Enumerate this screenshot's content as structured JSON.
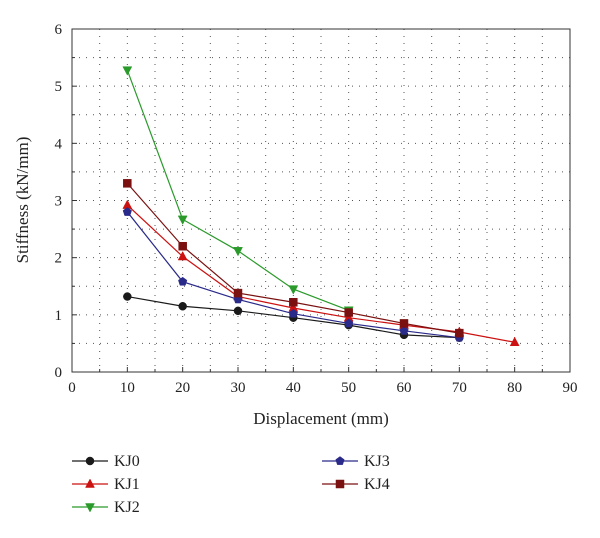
{
  "chart_data": {
    "type": "line",
    "title": "",
    "xlabel": "Displacement (mm)",
    "ylabel": "Stiffness (kN/mm)",
    "xlim": [
      0,
      90
    ],
    "ylim": [
      0,
      6
    ],
    "xticks": [
      0,
      10,
      20,
      30,
      40,
      50,
      60,
      70,
      80,
      90
    ],
    "yticks": [
      0,
      1,
      2,
      3,
      4,
      5,
      6
    ],
    "grid": true,
    "legend_position": "bottom",
    "series": [
      {
        "name": "KJ0",
        "color": "#1a1a1a",
        "marker": "circle",
        "x": [
          10,
          20,
          30,
          40,
          50,
          60,
          70
        ],
        "y": [
          1.32,
          1.15,
          1.07,
          0.95,
          0.82,
          0.65,
          0.6
        ]
      },
      {
        "name": "KJ1",
        "color": "#cc1111",
        "marker": "triangle-up",
        "x": [
          10,
          20,
          30,
          40,
          50,
          60,
          70,
          80
        ],
        "y": [
          2.92,
          2.02,
          1.32,
          1.12,
          0.95,
          0.82,
          0.7,
          0.52
        ]
      },
      {
        "name": "KJ2",
        "color": "#2a9a2a",
        "marker": "triangle-down",
        "x": [
          10,
          20,
          30,
          40,
          50
        ],
        "y": [
          5.28,
          2.67,
          2.12,
          1.45,
          1.08
        ]
      },
      {
        "name": "KJ3",
        "color": "#2a2a8a",
        "marker": "pentagon",
        "x": [
          10,
          20,
          30,
          40,
          50,
          60,
          70
        ],
        "y": [
          2.8,
          1.58,
          1.27,
          1.02,
          0.85,
          0.72,
          0.6
        ]
      },
      {
        "name": "KJ4",
        "color": "#7a1010",
        "marker": "square",
        "x": [
          10,
          20,
          30,
          40,
          50,
          60,
          70
        ],
        "y": [
          3.3,
          2.2,
          1.38,
          1.22,
          1.04,
          0.85,
          0.68
        ]
      }
    ]
  }
}
